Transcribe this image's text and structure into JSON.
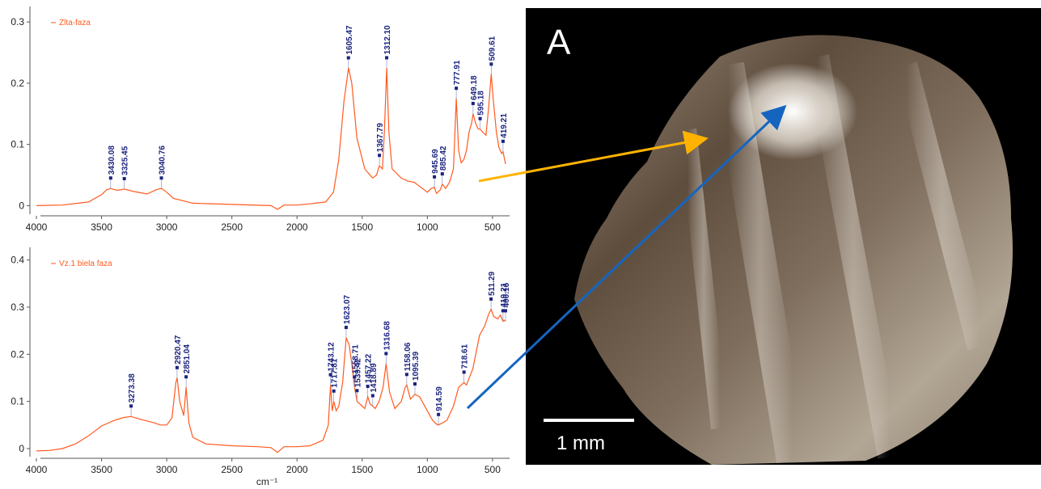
{
  "colors": {
    "spectrum": "#ff5a1f",
    "peak_label": "#1a237e",
    "arrow_yellow": "#ffb300",
    "arrow_blue": "#1565c0"
  },
  "photo": {
    "panel_label": "A",
    "scale_bar_label": "1 mm"
  },
  "chart_data": [
    {
      "type": "line",
      "series": [
        {
          "name": "Zlta-faza",
          "points": [
            [
              4000,
              0.0
            ],
            [
              3800,
              0.001
            ],
            [
              3600,
              0.006
            ],
            [
              3500,
              0.018
            ],
            [
              3460,
              0.026
            ],
            [
              3430,
              0.028
            ],
            [
              3380,
              0.025
            ],
            [
              3325,
              0.027
            ],
            [
              3250,
              0.023
            ],
            [
              3150,
              0.019
            ],
            [
              3080,
              0.026
            ],
            [
              3040,
              0.028
            ],
            [
              3000,
              0.022
            ],
            [
              2950,
              0.012
            ],
            [
              2800,
              0.004
            ],
            [
              2500,
              0.002
            ],
            [
              2200,
              0.0
            ],
            [
              2150,
              -0.006
            ],
            [
              2100,
              0.001
            ],
            [
              2000,
              0.001
            ],
            [
              1900,
              0.003
            ],
            [
              1780,
              0.006
            ],
            [
              1720,
              0.022
            ],
            [
              1680,
              0.075
            ],
            [
              1640,
              0.17
            ],
            [
              1605,
              0.225
            ],
            [
              1580,
              0.2
            ],
            [
              1540,
              0.11
            ],
            [
              1480,
              0.06
            ],
            [
              1420,
              0.045
            ],
            [
              1390,
              0.05
            ],
            [
              1368,
              0.065
            ],
            [
              1345,
              0.06
            ],
            [
              1330,
              0.12
            ],
            [
              1312,
              0.225
            ],
            [
              1295,
              0.12
            ],
            [
              1270,
              0.06
            ],
            [
              1200,
              0.045
            ],
            [
              1150,
              0.04
            ],
            [
              1100,
              0.038
            ],
            [
              1050,
              0.03
            ],
            [
              1000,
              0.022
            ],
            [
              970,
              0.028
            ],
            [
              946,
              0.03
            ],
            [
              930,
              0.02
            ],
            [
              900,
              0.026
            ],
            [
              885,
              0.035
            ],
            [
              860,
              0.028
            ],
            [
              830,
              0.038
            ],
            [
              800,
              0.06
            ],
            [
              778,
              0.175
            ],
            [
              760,
              0.09
            ],
            [
              740,
              0.07
            ],
            [
              720,
              0.075
            ],
            [
              700,
              0.09
            ],
            [
              680,
              0.12
            ],
            [
              660,
              0.135
            ],
            [
              649,
              0.15
            ],
            [
              630,
              0.135
            ],
            [
              610,
              0.125
            ],
            [
              595,
              0.125
            ],
            [
              575,
              0.12
            ],
            [
              550,
              0.115
            ],
            [
              530,
              0.16
            ],
            [
              510,
              0.215
            ],
            [
              495,
              0.175
            ],
            [
              470,
              0.12
            ],
            [
              450,
              0.095
            ],
            [
              430,
              0.085
            ],
            [
              419,
              0.088
            ],
            [
              400,
              0.068
            ]
          ]
        }
      ],
      "xlim": [
        4000,
        400
      ],
      "ylim": [
        -0.01,
        0.32
      ],
      "xticks": [
        "4000",
        "3500",
        "3000",
        "2500",
        "2000",
        "1500",
        "1000",
        "500"
      ],
      "yticks": [
        "0",
        "0.1",
        "0.2",
        "0.3"
      ],
      "peak_labels": [
        {
          "x": 3430.08,
          "label": "3430.08"
        },
        {
          "x": 3325.45,
          "label": "3325.45"
        },
        {
          "x": 3040.76,
          "label": "3040.76"
        },
        {
          "x": 1605.47,
          "label": "1605.47"
        },
        {
          "x": 1367.79,
          "label": "1367.79"
        },
        {
          "x": 1312.1,
          "label": "1312.10"
        },
        {
          "x": 945.69,
          "label": "945.69"
        },
        {
          "x": 885.42,
          "label": "885.42"
        },
        {
          "x": 777.91,
          "label": "777.91"
        },
        {
          "x": 649.18,
          "label": "649.18"
        },
        {
          "x": 595.18,
          "label": "595.18"
        },
        {
          "x": 509.61,
          "label": "509.61"
        },
        {
          "x": 419.21,
          "label": "419.21"
        }
      ],
      "xlabel": ""
    },
    {
      "type": "line",
      "series": [
        {
          "name": "Vz.1 biela faza",
          "points": [
            [
              4000,
              -0.005
            ],
            [
              3900,
              -0.004
            ],
            [
              3800,
              0.0
            ],
            [
              3700,
              0.01
            ],
            [
              3600,
              0.027
            ],
            [
              3500,
              0.048
            ],
            [
              3400,
              0.06
            ],
            [
              3330,
              0.066
            ],
            [
              3273,
              0.068
            ],
            [
              3200,
              0.062
            ],
            [
              3100,
              0.055
            ],
            [
              3050,
              0.05
            ],
            [
              3000,
              0.05
            ],
            [
              2960,
              0.065
            ],
            [
              2930,
              0.14
            ],
            [
              2920,
              0.15
            ],
            [
              2900,
              0.1
            ],
            [
              2870,
              0.07
            ],
            [
              2851,
              0.13
            ],
            [
              2830,
              0.055
            ],
            [
              2800,
              0.024
            ],
            [
              2700,
              0.01
            ],
            [
              2500,
              0.006
            ],
            [
              2300,
              0.004
            ],
            [
              2200,
              0.002
            ],
            [
              2150,
              -0.008
            ],
            [
              2100,
              0.004
            ],
            [
              2000,
              0.004
            ],
            [
              1900,
              0.006
            ],
            [
              1800,
              0.018
            ],
            [
              1760,
              0.05
            ],
            [
              1743,
              0.135
            ],
            [
              1730,
              0.08
            ],
            [
              1718,
              0.1
            ],
            [
              1700,
              0.08
            ],
            [
              1680,
              0.09
            ],
            [
              1650,
              0.14
            ],
            [
              1623,
              0.235
            ],
            [
              1600,
              0.22
            ],
            [
              1580,
              0.18
            ],
            [
              1559,
              0.13
            ],
            [
              1539,
              0.1
            ],
            [
              1500,
              0.09
            ],
            [
              1480,
              0.085
            ],
            [
              1457,
              0.11
            ],
            [
              1440,
              0.095
            ],
            [
              1419,
              0.09
            ],
            [
              1400,
              0.085
            ],
            [
              1370,
              0.1
            ],
            [
              1340,
              0.13
            ],
            [
              1317,
              0.18
            ],
            [
              1290,
              0.12
            ],
            [
              1250,
              0.085
            ],
            [
              1200,
              0.1
            ],
            [
              1170,
              0.13
            ],
            [
              1158,
              0.135
            ],
            [
              1130,
              0.105
            ],
            [
              1095,
              0.115
            ],
            [
              1060,
              0.11
            ],
            [
              1000,
              0.08
            ],
            [
              960,
              0.06
            ],
            [
              930,
              0.052
            ],
            [
              915,
              0.05
            ],
            [
              880,
              0.055
            ],
            [
              850,
              0.06
            ],
            [
              800,
              0.09
            ],
            [
              760,
              0.13
            ],
            [
              719,
              0.14
            ],
            [
              700,
              0.135
            ],
            [
              650,
              0.17
            ],
            [
              600,
              0.24
            ],
            [
              560,
              0.26
            ],
            [
              530,
              0.285
            ],
            [
              511,
              0.295
            ],
            [
              490,
              0.28
            ],
            [
              460,
              0.275
            ],
            [
              440,
              0.283
            ],
            [
              419,
              0.27
            ],
            [
              410,
              0.272
            ],
            [
              400,
              0.27
            ]
          ]
        }
      ],
      "xlim": [
        4000,
        400
      ],
      "ylim": [
        -0.012,
        0.42
      ],
      "xticks": [
        "4000",
        "3500",
        "3000",
        "2500",
        "2000",
        "1500",
        "1000",
        "500"
      ],
      "yticks": [
        "0",
        "0.1",
        "0.2",
        "0.3",
        "0.4"
      ],
      "peak_labels": [
        {
          "x": 3273.38,
          "label": "3273.38"
        },
        {
          "x": 2920.47,
          "label": "2920.47"
        },
        {
          "x": 2851.04,
          "label": "2851.04"
        },
        {
          "x": 1743.12,
          "label": "1743.12"
        },
        {
          "x": 1717.81,
          "label": "1717.81"
        },
        {
          "x": 1623.07,
          "label": "1623.07"
        },
        {
          "x": 1558.71,
          "label": "1558.71"
        },
        {
          "x": 1539.42,
          "label": "1539.42"
        },
        {
          "x": 1457.22,
          "label": "1457.22"
        },
        {
          "x": 1418.89,
          "label": "1418.89"
        },
        {
          "x": 1316.68,
          "label": "1316.68"
        },
        {
          "x": 1158.06,
          "label": "1158.06"
        },
        {
          "x": 1095.39,
          "label": "1095.39"
        },
        {
          "x": 914.59,
          "label": "914.59"
        },
        {
          "x": 718.61,
          "label": "718.61"
        },
        {
          "x": 511.29,
          "label": "511.29"
        },
        {
          "x": 419.21,
          "label": "419.21"
        },
        {
          "x": 400.16,
          "label": "400.16"
        }
      ],
      "xlabel": "cm⁻¹"
    }
  ]
}
